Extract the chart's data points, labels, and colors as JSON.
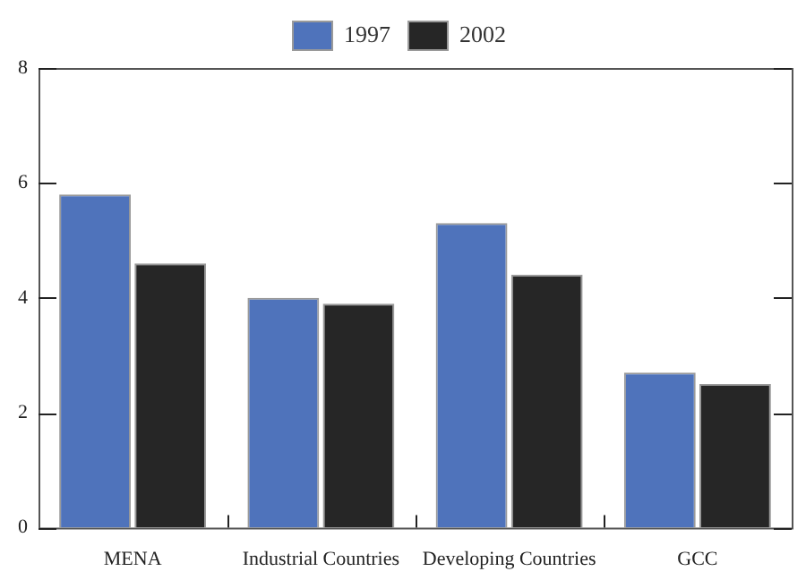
{
  "chart_data": {
    "type": "bar",
    "categories": [
      "MENA",
      "Industrial Countries",
      "Developing Countries",
      "GCC"
    ],
    "series": [
      {
        "name": "1997",
        "color": "#4f73bb",
        "values": [
          5.8,
          4.0,
          5.3,
          2.7
        ]
      },
      {
        "name": "2002",
        "color": "#262626",
        "values": [
          4.6,
          3.9,
          4.4,
          2.5
        ]
      }
    ],
    "ylim": [
      0,
      8
    ],
    "yticks": [
      0,
      2,
      4,
      6,
      8
    ],
    "grid": false,
    "legend": "top"
  }
}
